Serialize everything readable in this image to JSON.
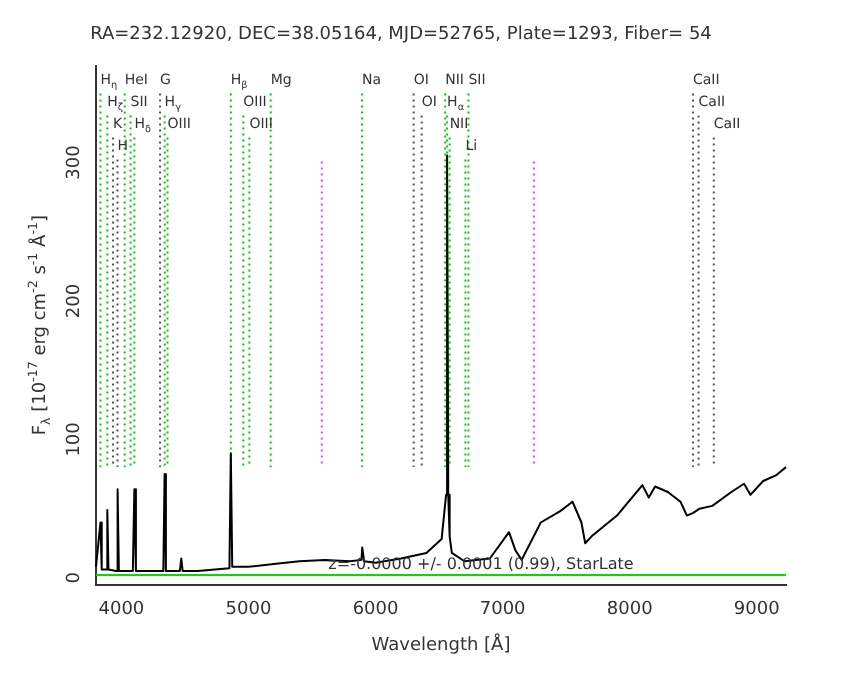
{
  "chart_data": {
    "type": "line",
    "title": "RA=232.12920, DEC=38.05164, MJD=52765, Plate=1293, Fiber= 54",
    "xlabel": "Wavelength [Å]",
    "ylabel": "F$_{λ}$ [10$^{-17}$ erg cm$^{-2}$ s$^{-1}$ Å$^{-1}$]",
    "xlim": [
      3800,
      9230
    ],
    "xticks": [
      4000,
      5000,
      6000,
      7000,
      8000,
      9000
    ],
    "ylim": [
      -5,
      370
    ],
    "yticks": [
      0,
      100,
      200,
      300
    ],
    "grid": false,
    "legend": false,
    "marker": "none",
    "line_style": "solid",
    "series": [
      {
        "color": "#000000",
        "x": [
          3800,
          3835,
          3845,
          3880,
          3889,
          3898,
          3960,
          3970,
          3980,
          4090,
          4102,
          4114,
          4330,
          4340,
          4350,
          4460,
          4471,
          4482,
          4600,
          4850,
          4861,
          4872,
          5000,
          5200,
          5400,
          5600,
          5800,
          5890,
          5895,
          5910,
          6000,
          6200,
          6400,
          6520,
          6555,
          6563,
          6572,
          6583,
          6600,
          6700,
          6900,
          7050,
          7100,
          7150,
          7300,
          7450,
          7550,
          7620,
          7650,
          7700,
          7900,
          8100,
          8150,
          8200,
          8300,
          8400,
          8450,
          8500,
          8550,
          8650,
          8800,
          8900,
          8950,
          9050,
          9150,
          9230
        ],
        "values": [
          8,
          40,
          6,
          6,
          49,
          6,
          5,
          64,
          5,
          5,
          64,
          5,
          5,
          75,
          5,
          5,
          14,
          5,
          5,
          7,
          90,
          8,
          8,
          10,
          12,
          13,
          12,
          13,
          22,
          12,
          11,
          14,
          18,
          28,
          60,
          305,
          60,
          30,
          18,
          12,
          14,
          33,
          20,
          13,
          40,
          48,
          55,
          40,
          25,
          30,
          45,
          67,
          58,
          66,
          62,
          55,
          45,
          47,
          50,
          52,
          62,
          68,
          60,
          70,
          74,
          80
        ]
      },
      {
        "color": "#00dd00",
        "x": [
          3800,
          9230
        ],
        "values": [
          2,
          2
        ]
      }
    ],
    "ref_lines": [
      {
        "axis": "x",
        "value": 3835,
        "label": "H$_{η}$",
        "color": "#00cc00",
        "line_style": "dotted"
      },
      {
        "axis": "x",
        "value": 3889,
        "label": "H$_{ζ}$",
        "color": "#00cc00",
        "line_style": "dotted"
      },
      {
        "axis": "x",
        "value": 3934,
        "label": "K",
        "color": "#555555",
        "line_style": "dotted"
      },
      {
        "axis": "x",
        "value": 3969,
        "label": "H",
        "color": "#555555",
        "line_style": "dotted"
      },
      {
        "axis": "x",
        "value": 4026,
        "label": "HeI",
        "color": "#00cc00",
        "line_style": "dotted"
      },
      {
        "axis": "x",
        "value": 4072,
        "label": "SII",
        "color": "#00cc00",
        "line_style": "dotted"
      },
      {
        "axis": "x",
        "value": 4102,
        "label": "H$_{δ}$",
        "color": "#00cc00",
        "line_style": "dotted"
      },
      {
        "axis": "x",
        "value": 4304,
        "label": "G",
        "color": "#555555",
        "line_style": "dotted"
      },
      {
        "axis": "x",
        "value": 4340,
        "label": "H$_{γ}$",
        "color": "#00cc00",
        "line_style": "dotted"
      },
      {
        "axis": "x",
        "value": 4363,
        "label": "OIII",
        "color": "#00cc00",
        "line_style": "dotted"
      },
      {
        "axis": "x",
        "value": 4861,
        "label": "H$_{β}$",
        "color": "#00cc00",
        "line_style": "dotted"
      },
      {
        "axis": "x",
        "value": 4959,
        "label": "OIII",
        "color": "#00cc00",
        "line_style": "dotted"
      },
      {
        "axis": "x",
        "value": 5007,
        "label": "OIII",
        "color": "#00cc00",
        "line_style": "dotted"
      },
      {
        "axis": "x",
        "value": 5175,
        "label": "Mg",
        "color": "#00cc00",
        "line_style": "dotted"
      },
      {
        "axis": "x",
        "value": 5577,
        "color": "#ee44ee",
        "line_style": "dotted"
      },
      {
        "axis": "x",
        "value": 5894,
        "label": "Na",
        "color": "#00cc00",
        "line_style": "dotted"
      },
      {
        "axis": "x",
        "value": 6300,
        "label": "OI",
        "color": "#555555",
        "line_style": "dotted"
      },
      {
        "axis": "x",
        "value": 6363,
        "label": "OI",
        "color": "#555555",
        "line_style": "dotted"
      },
      {
        "axis": "x",
        "value": 6548,
        "label": "NII",
        "color": "#00cc00",
        "line_style": "dotted"
      },
      {
        "axis": "x",
        "value": 6563,
        "label": "H$_{α}$",
        "color": "#00cc00",
        "line_style": "dotted"
      },
      {
        "axis": "x",
        "value": 6583,
        "label": "NII",
        "color": "#00cc00",
        "line_style": "dotted"
      },
      {
        "axis": "x",
        "value": 6707,
        "label": "Li",
        "color": "#00cc00",
        "line_style": "dotted"
      },
      {
        "axis": "x",
        "value": 6731,
        "label": "SII",
        "color": "#00cc00",
        "line_style": "dotted"
      },
      {
        "axis": "x",
        "value": 7246,
        "color": "#ee44ee",
        "line_style": "dotted"
      },
      {
        "axis": "x",
        "value": 8498,
        "label": "CaII",
        "color": "#555555",
        "line_style": "dotted"
      },
      {
        "axis": "x",
        "value": 8542,
        "label": "CaII",
        "color": "#555555",
        "line_style": "dotted"
      },
      {
        "axis": "x",
        "value": 8662,
        "label": "CaII",
        "color": "#555555",
        "line_style": "dotted"
      }
    ],
    "annotations": [
      "z=-0.0000 +/- 0.0001 (0.99), StarLate"
    ]
  }
}
